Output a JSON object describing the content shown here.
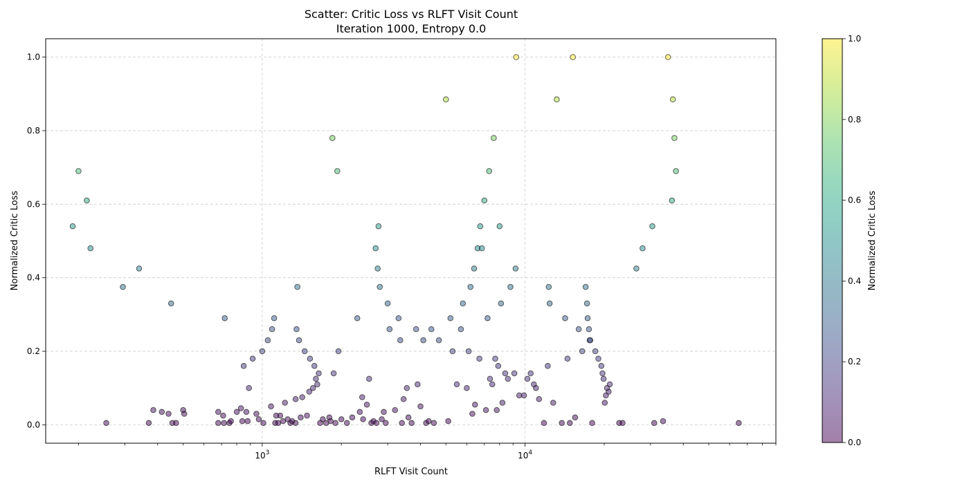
{
  "chart_data": {
    "type": "scatter",
    "title": "Scatter: Critic Loss vs RLFT Visit Count",
    "subtitle": "Iteration 1000, Entropy 0.0",
    "xlabel": "RLFT Visit Count",
    "ylabel": "Normalized Critic Loss",
    "x_scale": "log",
    "xlim": [
      150,
      90000
    ],
    "ylim": [
      -0.05,
      1.05
    ],
    "x_tick_labels": [
      "10^3",
      "10^4"
    ],
    "y_tick_labels": [
      "0.0",
      "0.2",
      "0.4",
      "0.6",
      "0.8",
      "1.0"
    ],
    "grid": true,
    "colorbar": {
      "label": "Normalized Critic Loss",
      "colormap": "viridis",
      "alpha": 0.5,
      "range": [
        0,
        1
      ],
      "tick_labels": [
        "0.0",
        "0.2",
        "0.4",
        "0.6",
        "0.8",
        "1.0"
      ]
    },
    "points": [
      [
        190,
        0.54
      ],
      [
        200,
        0.69
      ],
      [
        215,
        0.61
      ],
      [
        222,
        0.48
      ],
      [
        255,
        0.005
      ],
      [
        295,
        0.375
      ],
      [
        340,
        0.425
      ],
      [
        370,
        0.005
      ],
      [
        385,
        0.04
      ],
      [
        415,
        0.035
      ],
      [
        440,
        0.03
      ],
      [
        450,
        0.33
      ],
      [
        455,
        0.005
      ],
      [
        470,
        0.005
      ],
      [
        500,
        0.04
      ],
      [
        505,
        0.03
      ],
      [
        680,
        0.035
      ],
      [
        680,
        0.005
      ],
      [
        710,
        0.025
      ],
      [
        715,
        0.005
      ],
      [
        720,
        0.29
      ],
      [
        750,
        0.005
      ],
      [
        760,
        0.01
      ],
      [
        800,
        0.035
      ],
      [
        830,
        0.045
      ],
      [
        840,
        0.01
      ],
      [
        850,
        0.16
      ],
      [
        870,
        0.035
      ],
      [
        880,
        0.01
      ],
      [
        890,
        0.1
      ],
      [
        920,
        0.18
      ],
      [
        950,
        0.03
      ],
      [
        970,
        0.015
      ],
      [
        1000,
        0.2
      ],
      [
        1010,
        0.005
      ],
      [
        1050,
        0.23
      ],
      [
        1080,
        0.05
      ],
      [
        1090,
        0.26
      ],
      [
        1110,
        0.29
      ],
      [
        1120,
        0.005
      ],
      [
        1130,
        0.025
      ],
      [
        1150,
        0.005
      ],
      [
        1170,
        0.025
      ],
      [
        1200,
        0.01
      ],
      [
        1220,
        0.06
      ],
      [
        1250,
        0.015
      ],
      [
        1280,
        0.005
      ],
      [
        1300,
        0.01
      ],
      [
        1340,
        0.005
      ],
      [
        1340,
        0.07
      ],
      [
        1350,
        0.26
      ],
      [
        1360,
        0.375
      ],
      [
        1380,
        0.23
      ],
      [
        1400,
        0.02
      ],
      [
        1420,
        0.075
      ],
      [
        1450,
        0.2
      ],
      [
        1480,
        0.025
      ],
      [
        1510,
        0.09
      ],
      [
        1520,
        0.18
      ],
      [
        1560,
        0.1
      ],
      [
        1580,
        0.16
      ],
      [
        1600,
        0.125
      ],
      [
        1620,
        0.11
      ],
      [
        1640,
        0.14
      ],
      [
        1660,
        0.005
      ],
      [
        1700,
        0.015
      ],
      [
        1750,
        0.005
      ],
      [
        1800,
        0.02
      ],
      [
        1820,
        0.01
      ],
      [
        1850,
        0.78
      ],
      [
        1870,
        0.14
      ],
      [
        1900,
        0.005
      ],
      [
        1930,
        0.69
      ],
      [
        1950,
        0.2
      ],
      [
        2000,
        0.015
      ],
      [
        2100,
        0.005
      ],
      [
        2200,
        0.02
      ],
      [
        2300,
        0.29
      ],
      [
        2350,
        0.035
      ],
      [
        2400,
        0.075
      ],
      [
        2420,
        0.015
      ],
      [
        2500,
        0.055
      ],
      [
        2550,
        0.125
      ],
      [
        2600,
        0.005
      ],
      [
        2650,
        0.01
      ],
      [
        2700,
        0.48
      ],
      [
        2720,
        0.005
      ],
      [
        2750,
        0.425
      ],
      [
        2770,
        0.54
      ],
      [
        2800,
        0.375
      ],
      [
        2850,
        0.015
      ],
      [
        2900,
        0.035
      ],
      [
        2950,
        0.005
      ],
      [
        3000,
        0.33
      ],
      [
        3050,
        0.26
      ],
      [
        3200,
        0.04
      ],
      [
        3300,
        0.29
      ],
      [
        3350,
        0.23
      ],
      [
        3400,
        0.005
      ],
      [
        3450,
        0.07
      ],
      [
        3550,
        0.1
      ],
      [
        3600,
        0.02
      ],
      [
        3700,
        0.005
      ],
      [
        3850,
        0.26
      ],
      [
        3900,
        0.11
      ],
      [
        4000,
        0.05
      ],
      [
        4100,
        0.23
      ],
      [
        4200,
        0.005
      ],
      [
        4300,
        0.01
      ],
      [
        4400,
        0.26
      ],
      [
        4500,
        0.005
      ],
      [
        4700,
        0.23
      ],
      [
        5000,
        0.885
      ],
      [
        5100,
        0.01
      ],
      [
        5200,
        0.29
      ],
      [
        5300,
        0.2
      ],
      [
        5500,
        0.11
      ],
      [
        5700,
        0.26
      ],
      [
        5800,
        0.33
      ],
      [
        6000,
        0.1
      ],
      [
        6100,
        0.2
      ],
      [
        6200,
        0.375
      ],
      [
        6300,
        0.03
      ],
      [
        6400,
        0.425
      ],
      [
        6450,
        0.055
      ],
      [
        6600,
        0.48
      ],
      [
        6700,
        0.18
      ],
      [
        6750,
        0.54
      ],
      [
        6850,
        0.48
      ],
      [
        7000,
        0.61
      ],
      [
        7100,
        0.04
      ],
      [
        7200,
        0.29
      ],
      [
        7300,
        0.69
      ],
      [
        7350,
        0.125
      ],
      [
        7500,
        0.11
      ],
      [
        7600,
        0.78
      ],
      [
        7700,
        0.18
      ],
      [
        7800,
        0.04
      ],
      [
        7900,
        0.16
      ],
      [
        8000,
        0.54
      ],
      [
        8100,
        0.33
      ],
      [
        8200,
        0.06
      ],
      [
        8400,
        0.14
      ],
      [
        8600,
        0.125
      ],
      [
        8800,
        0.375
      ],
      [
        9100,
        0.14
      ],
      [
        9200,
        0.425
      ],
      [
        9250,
        1.0
      ],
      [
        9500,
        0.08
      ],
      [
        9900,
        0.08
      ],
      [
        10200,
        0.125
      ],
      [
        10500,
        0.14
      ],
      [
        10800,
        0.11
      ],
      [
        11000,
        0.1
      ],
      [
        11300,
        0.07
      ],
      [
        11800,
        0.005
      ],
      [
        12200,
        0.16
      ],
      [
        12300,
        0.375
      ],
      [
        12400,
        0.33
      ],
      [
        12800,
        0.06
      ],
      [
        13200,
        0.885
      ],
      [
        13800,
        0.005
      ],
      [
        14200,
        0.29
      ],
      [
        14500,
        0.18
      ],
      [
        14800,
        0.005
      ],
      [
        15200,
        1.0
      ],
      [
        15500,
        0.02
      ],
      [
        16000,
        0.26
      ],
      [
        16500,
        0.2
      ],
      [
        17000,
        0.375
      ],
      [
        17200,
        0.33
      ],
      [
        17300,
        0.29
      ],
      [
        17500,
        0.26
      ],
      [
        17600,
        0.23
      ],
      [
        17700,
        0.23
      ],
      [
        18000,
        0.005
      ],
      [
        18500,
        0.2
      ],
      [
        19000,
        0.18
      ],
      [
        19500,
        0.16
      ],
      [
        19700,
        0.14
      ],
      [
        19900,
        0.125
      ],
      [
        20100,
        0.06
      ],
      [
        20300,
        0.08
      ],
      [
        20500,
        0.1
      ],
      [
        20800,
        0.09
      ],
      [
        21000,
        0.11
      ],
      [
        22800,
        0.005
      ],
      [
        23500,
        0.005
      ],
      [
        26500,
        0.425
      ],
      [
        28000,
        0.48
      ],
      [
        30500,
        0.54
      ],
      [
        31000,
        0.005
      ],
      [
        33500,
        0.01
      ],
      [
        35000,
        1.0
      ],
      [
        36200,
        0.61
      ],
      [
        36500,
        0.885
      ],
      [
        37000,
        0.78
      ],
      [
        37500,
        0.69
      ],
      [
        65000,
        0.005
      ]
    ]
  }
}
